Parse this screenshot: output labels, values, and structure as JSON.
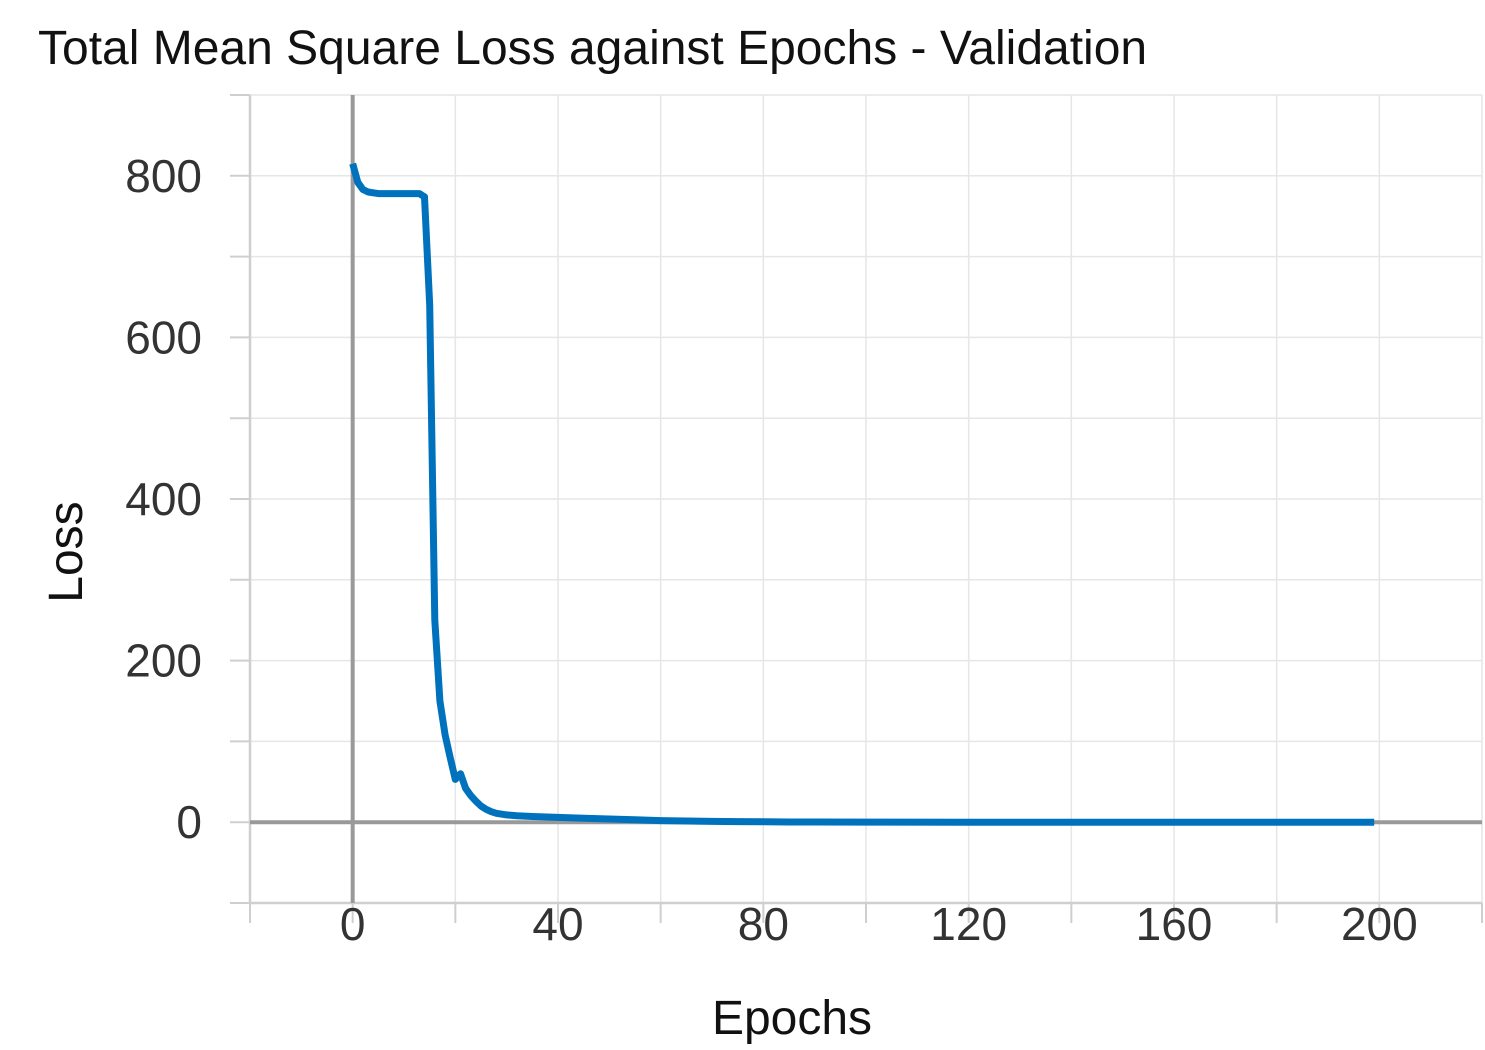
{
  "colors": {
    "series": "#0072bd",
    "grid": "#e6e6e6",
    "frame": "#cfcfcf",
    "zero_axis": "#999999",
    "text": "#333333"
  },
  "chart_data": {
    "type": "line",
    "title": "Total Mean Square Loss against Epochs - Validation",
    "xlabel": "Epochs",
    "ylabel": "Loss",
    "xlim": [
      -20,
      220
    ],
    "ylim": [
      -100,
      900
    ],
    "xticks": [
      0,
      40,
      80,
      120,
      160,
      200
    ],
    "xtick_labels": [
      "0",
      "40",
      "80",
      "120",
      "160",
      "200"
    ],
    "yticks": [
      0,
      200,
      400,
      600,
      800
    ],
    "ytick_labels": [
      "0",
      "200",
      "400",
      "600",
      "800"
    ],
    "grid": true,
    "legend": "none",
    "series": [
      {
        "x": [
          0,
          1,
          2,
          3,
          4,
          5,
          6,
          7,
          8,
          9,
          10,
          11,
          12,
          13,
          14,
          15,
          16,
          17,
          18,
          19,
          20,
          21,
          22,
          23,
          24,
          25,
          26,
          27,
          28,
          30,
          32,
          35,
          40,
          45,
          50,
          55,
          60,
          65,
          70,
          75,
          80,
          85,
          90,
          100,
          120,
          140,
          160,
          180,
          199
        ],
        "y": [
          815,
          792,
          783,
          780,
          779,
          778,
          778,
          778,
          778,
          778,
          778,
          778,
          778,
          778,
          774,
          640,
          250,
          150,
          108,
          80,
          53,
          60,
          42,
          33,
          26,
          20,
          16,
          13,
          11,
          9,
          8,
          7,
          6,
          5,
          4,
          3,
          2,
          1.5,
          1,
          0.7,
          0.5,
          0.3,
          0.2,
          0.1,
          0.05,
          0.03,
          0.02,
          0.01,
          0
        ]
      }
    ]
  }
}
